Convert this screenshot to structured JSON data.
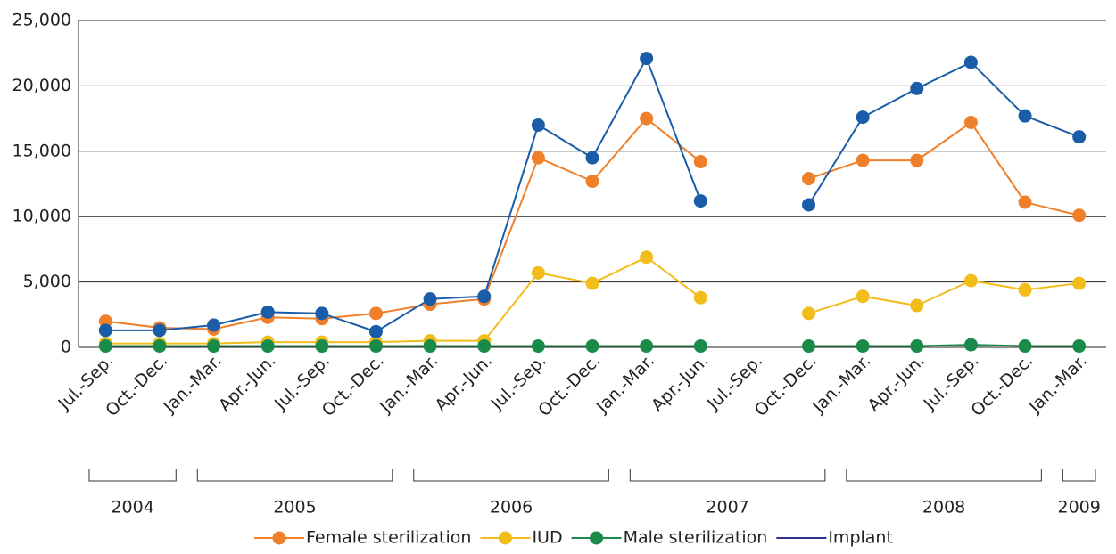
{
  "chart_data": {
    "type": "line",
    "categories": [
      "Jul.-Sep.",
      "Oct.-Dec.",
      "Jan.-Mar.",
      "Apr.-Jun.",
      "Jul.-Sep.",
      "Oct.-Dec.",
      "Jan.-Mar.",
      "Apr.-Jun.",
      "Jul.-Sep.",
      "Oct.-Dec.",
      "Jan.-Mar.",
      "Apr.-Jun.",
      "Jul.-Sep.",
      "Oct.-Dec.",
      "Jan.-Mar.",
      "Apr.-Jun.",
      "Jul.-Sep.",
      "Oct.-Dec.",
      "Jan.-Mar."
    ],
    "year_groups": [
      {
        "label": "2004",
        "start": 0,
        "end": 1
      },
      {
        "label": "2005",
        "start": 2,
        "end": 5
      },
      {
        "label": "2006",
        "start": 6,
        "end": 9
      },
      {
        "label": "2007",
        "start": 10,
        "end": 13
      },
      {
        "label": "2008",
        "start": 14,
        "end": 17
      },
      {
        "label": "2009",
        "start": 18,
        "end": 18
      }
    ],
    "series": [
      {
        "name": "Female sterilization",
        "color": "#f07f2a",
        "marker": true,
        "values": [
          2000,
          1500,
          1400,
          2300,
          2200,
          2600,
          3300,
          3700,
          14500,
          12700,
          17500,
          14200,
          null,
          12900,
          14300,
          14300,
          17200,
          11100,
          10100
        ]
      },
      {
        "name": "IUD",
        "color": "#f2bc1a",
        "marker": true,
        "values": [
          300,
          300,
          300,
          400,
          400,
          400,
          500,
          500,
          5700,
          4900,
          6900,
          3800,
          null,
          2600,
          3900,
          3200,
          5100,
          4400,
          4900
        ]
      },
      {
        "name": "Male sterilization",
        "color": "#1a8a4a",
        "marker": true,
        "values": [
          100,
          100,
          100,
          100,
          100,
          100,
          100,
          100,
          100,
          100,
          100,
          100,
          null,
          100,
          100,
          100,
          200,
          100,
          100
        ]
      },
      {
        "name": "Implant",
        "color": "#1a5ca8",
        "marker": true,
        "values": [
          1300,
          1300,
          1700,
          2700,
          2600,
          1200,
          3700,
          3900,
          17000,
          14500,
          22100,
          11200,
          null,
          10900,
          17600,
          19800,
          21800,
          17700,
          16100
        ]
      }
    ],
    "ylim": [
      0,
      25000
    ],
    "yticks": [
      0,
      {
        "value": 5000,
        "label": "5,000"
      },
      {
        "value": 10000,
        "label": "10,000"
      },
      {
        "value": 15000,
        "label": "15,000"
      },
      {
        "value": 20000,
        "label": "20,000"
      },
      {
        "value": 25000,
        "label": "25,000"
      }
    ],
    "grid": true
  }
}
